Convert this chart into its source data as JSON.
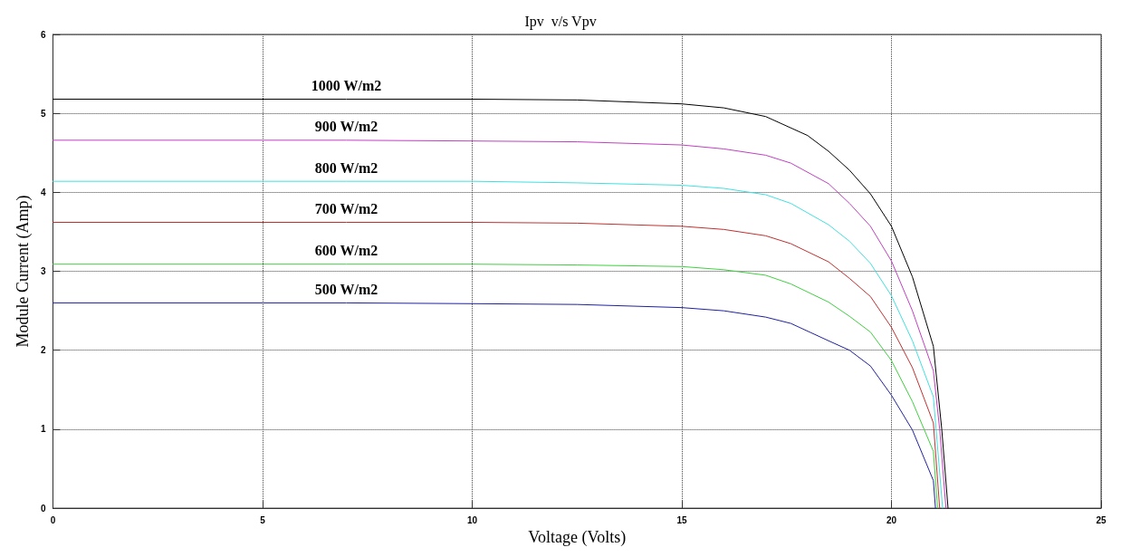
{
  "chart_data": {
    "type": "line",
    "title": "Ipv  v/s Vpv",
    "xlabel": "Voltage (Volts)",
    "ylabel": "Module Current (Amp)",
    "xlim": [
      0,
      25
    ],
    "xticks": [
      0,
      5,
      10,
      15,
      20,
      25
    ],
    "ylim": [
      0,
      6
    ],
    "yticks": [
      0,
      1,
      2,
      3,
      4,
      5,
      6
    ],
    "grid": true,
    "legend": false,
    "marker": "none",
    "line_style": "solid",
    "series": [
      {
        "name": "1000 W/m2",
        "color": "#000000",
        "x": [
          0,
          7,
          10,
          12.5,
          15,
          16,
          17,
          18,
          18.5,
          19,
          19.5,
          20,
          20.5,
          21,
          21.2,
          21.35
        ],
        "values": [
          5.18,
          5.18,
          5.18,
          5.17,
          5.12,
          5.07,
          4.96,
          4.72,
          4.52,
          4.28,
          3.98,
          3.57,
          2.93,
          2.05,
          1.0,
          0
        ]
      },
      {
        "name": "900 W/m2",
        "color": "#c040c0",
        "x": [
          0,
          7,
          10,
          12.5,
          15,
          16,
          17,
          17.6,
          18.5,
          19,
          19.5,
          20,
          20.5,
          21,
          21.15,
          21.3
        ],
        "values": [
          4.66,
          4.66,
          4.65,
          4.64,
          4.6,
          4.55,
          4.47,
          4.37,
          4.11,
          3.86,
          3.57,
          3.13,
          2.5,
          1.74,
          1.0,
          0
        ]
      },
      {
        "name": "800 W/m2",
        "color": "#40e0e0",
        "x": [
          0,
          7,
          10,
          12.5,
          15,
          16,
          17,
          17.6,
          18.5,
          19,
          19.5,
          20,
          20.5,
          21,
          21.22
        ],
        "values": [
          4.14,
          4.14,
          4.14,
          4.12,
          4.09,
          4.05,
          3.97,
          3.86,
          3.59,
          3.38,
          3.1,
          2.69,
          2.12,
          1.41,
          0
        ]
      },
      {
        "name": "700 W/m2",
        "color": "#c03030",
        "x": [
          0,
          7,
          10,
          12.5,
          15,
          16,
          17,
          17.6,
          18.5,
          19,
          19.5,
          20,
          20.5,
          21,
          21.15
        ],
        "values": [
          3.62,
          3.62,
          3.62,
          3.61,
          3.57,
          3.53,
          3.45,
          3.35,
          3.12,
          2.91,
          2.68,
          2.29,
          1.78,
          1.08,
          0
        ]
      },
      {
        "name": "600 W/m2",
        "color": "#40d040",
        "x": [
          0,
          7,
          10,
          12.5,
          15,
          16,
          17,
          17.6,
          18.5,
          19,
          19.5,
          20,
          20.5,
          21,
          21.1
        ],
        "values": [
          3.09,
          3.09,
          3.09,
          3.08,
          3.06,
          3.02,
          2.95,
          2.84,
          2.61,
          2.43,
          2.23,
          1.87,
          1.35,
          0.72,
          0
        ]
      },
      {
        "name": "500 W/m2",
        "color": "#2020a0",
        "x": [
          0,
          7,
          10,
          12.5,
          15,
          16,
          17,
          17.6,
          18.5,
          19,
          19.5,
          20,
          20.5,
          21,
          21.05
        ],
        "values": [
          2.6,
          2.6,
          2.59,
          2.58,
          2.54,
          2.5,
          2.42,
          2.34,
          2.12,
          2.0,
          1.8,
          1.43,
          0.99,
          0.35,
          0
        ]
      }
    ]
  }
}
